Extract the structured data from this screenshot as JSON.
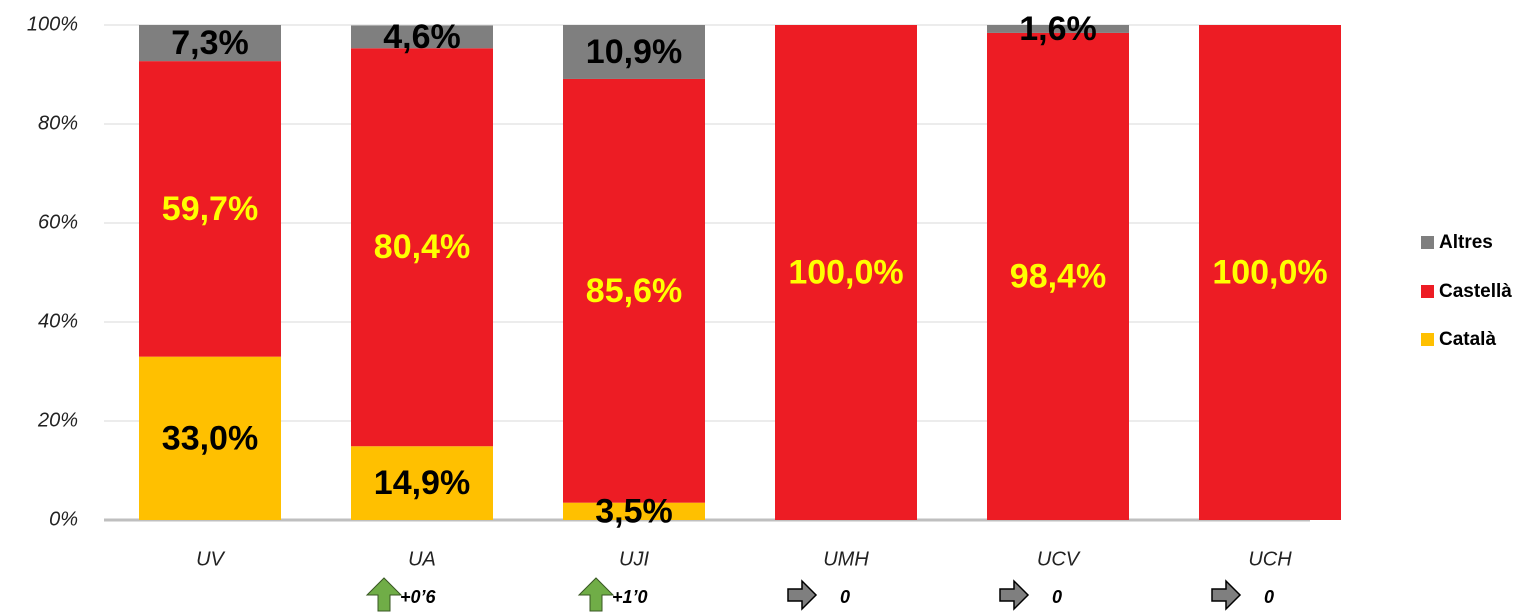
{
  "chart_data": {
    "type": "stacked_bar",
    "categories": [
      "UV",
      "UA",
      "UJI",
      "UMH",
      "UCV",
      "UCH"
    ],
    "series": [
      {
        "name": "Català",
        "color": "#ffc000",
        "label_color": "#000000",
        "values": [
          33.0,
          14.9,
          3.5,
          0,
          0,
          0
        ],
        "value_labels": [
          "33,0%",
          "14,9%",
          "3,5%",
          null,
          null,
          null
        ]
      },
      {
        "name": "Castellà",
        "color": "#ed1c24",
        "label_color": "#ffff00",
        "values": [
          59.7,
          80.4,
          85.6,
          100.0,
          98.4,
          100.0
        ],
        "value_labels": [
          "59,7%",
          "80,4%",
          "85,6%",
          "100,0%",
          "98,4%",
          "100,0%"
        ]
      },
      {
        "name": "Altres",
        "color": "#7f7f7f",
        "label_color": "#000000",
        "values": [
          7.3,
          4.6,
          10.9,
          0,
          1.6,
          0
        ],
        "value_labels": [
          "7,3%",
          "4,6%",
          "10,9%",
          null,
          "1,6%",
          null
        ]
      }
    ],
    "change_labels": [
      null,
      "+0’6",
      "+1’0",
      "0",
      "0",
      "0"
    ],
    "ylim": [
      0,
      100
    ],
    "yticks": [
      {
        "value": 0,
        "label": "0%"
      },
      {
        "value": 20,
        "label": "20%"
      },
      {
        "value": 40,
        "label": "40%"
      },
      {
        "value": 60,
        "label": "60%"
      },
      {
        "value": 80,
        "label": "80%"
      },
      {
        "value": 100,
        "label": "100%"
      }
    ],
    "grid": true,
    "legend": "right"
  }
}
